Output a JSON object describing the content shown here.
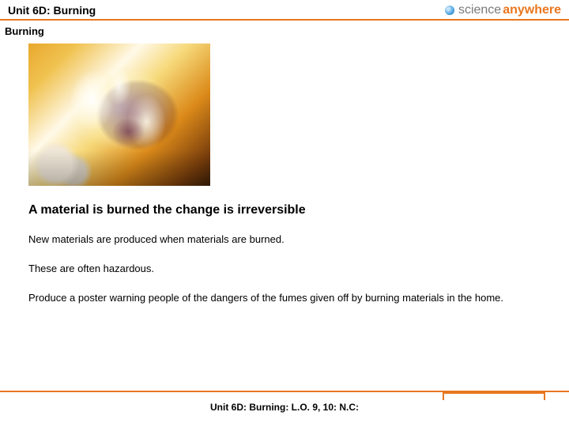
{
  "header": {
    "unit_title": "Unit 6D: Burning",
    "logo": {
      "gray": "science",
      "orange": "anywhere"
    }
  },
  "subtitle": "Burning",
  "main": {
    "heading": "A material is burned the change is irreversible",
    "p1": "New materials are produced when materials are burned.",
    "p2": "These are often hazardous.",
    "p3": "Produce a poster warning people of the dangers of the fumes given off by burning materials in the home."
  },
  "footer": "Unit 6D: Burning: L.O. 9, 10: N.C:",
  "colors": {
    "accent": "#e8771f",
    "text": "#000000",
    "bg": "#ffffff"
  }
}
